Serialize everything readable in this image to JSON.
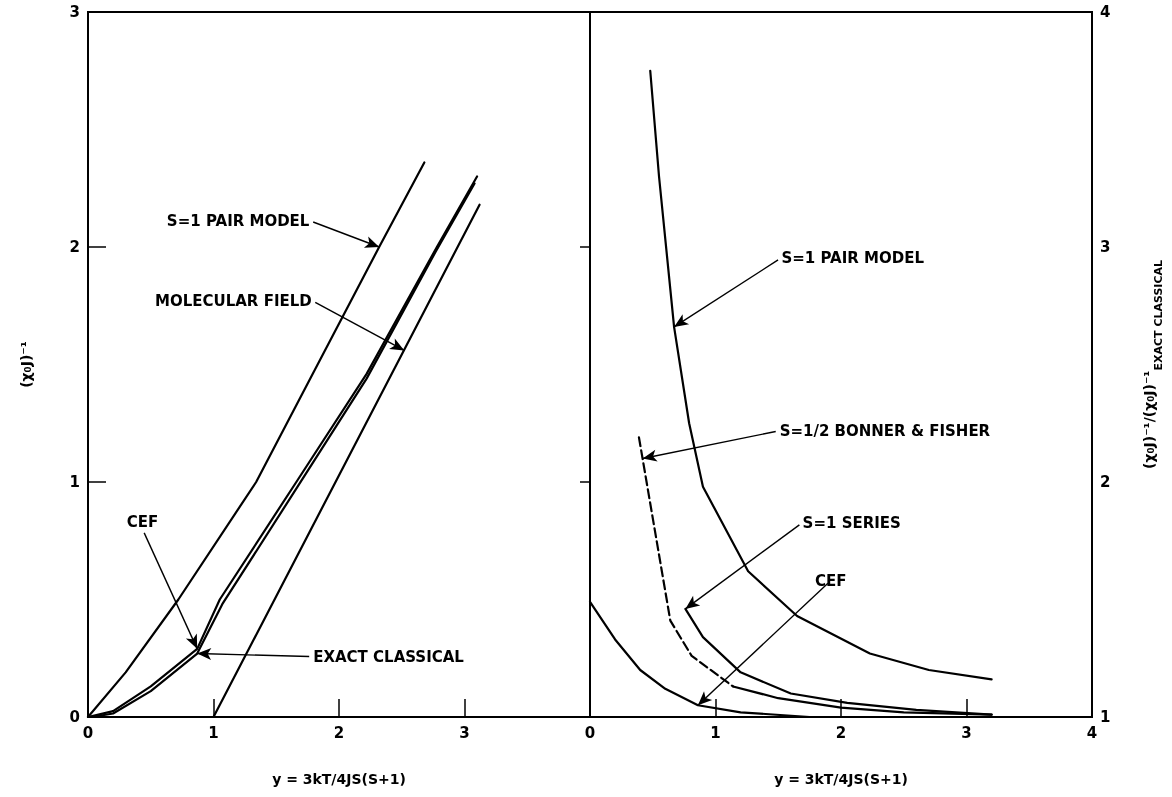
{
  "chart_data": [
    {
      "type": "line",
      "xlabel": "y = 3kT/4JS(S+1)",
      "ylabel": "(χ₀J)⁻¹",
      "xlim": [
        0,
        4
      ],
      "xticks": [
        0,
        1,
        2,
        3
      ],
      "ylim": [
        0,
        3
      ],
      "yticks": [
        0,
        1,
        2,
        3
      ],
      "marker": "none",
      "series": [
        {
          "color": "#000000",
          "x": [
            0,
            0.3,
            0.72,
            1.34,
            1.79,
            2.32,
            2.68
          ],
          "values": [
            0,
            0.19,
            0.5,
            1.0,
            1.46,
            2.0,
            2.36
          ]
        },
        {
          "color": "#000000",
          "x": [
            1,
            3.12
          ],
          "values": [
            0,
            2.18
          ]
        },
        {
          "color": "#000000",
          "x": [
            0,
            0.2,
            0.5,
            0.87,
            1.05,
            1.66,
            2.22,
            2.78,
            3.1
          ],
          "values": [
            0,
            0.025,
            0.13,
            0.29,
            0.5,
            1.0,
            1.46,
            2.0,
            2.3
          ]
        },
        {
          "color": "#000000",
          "x": [
            0.03,
            0.2,
            0.5,
            0.87,
            1.07,
            1.67,
            2.22,
            2.77,
            3.08
          ],
          "values": [
            0,
            0.015,
            0.11,
            0.27,
            0.48,
            0.98,
            1.44,
            1.98,
            2.27
          ]
        }
      ],
      "annotations": [
        {
          "text": "S=1 PAIR MODEL",
          "x": 2.32,
          "y": 2.0
        },
        {
          "text": "MOLECULAR FIELD",
          "x": 2.52,
          "y": 1.56
        },
        {
          "text": "CEF",
          "x": 0.87,
          "y": 0.29
        },
        {
          "text": "EXACT CLASSICAL",
          "x": 0.87,
          "y": 0.27
        }
      ]
    },
    {
      "type": "line",
      "xlabel": "y = 3kT/4JS(S+1)",
      "ylabel": "(χ₀J)⁻¹/(χ₀J)⁻¹$_{EXACT CLASSICAL}$",
      "xlim": [
        0,
        4
      ],
      "xticks": [
        0,
        1,
        2,
        3,
        4
      ],
      "ylim": [
        1,
        4
      ],
      "yticks": [
        1,
        2,
        3,
        4
      ],
      "marker": "none",
      "series": [
        {
          "color": "#000000",
          "x": [
            0.48,
            0.55,
            0.67,
            0.79,
            0.9,
            1.26,
            1.65,
            2.23,
            2.7,
            3.2
          ],
          "values": [
            3.75,
            3.3,
            2.66,
            2.25,
            1.98,
            1.62,
            1.43,
            1.27,
            1.2,
            1.16
          ]
        },
        {
          "color": "#000000",
          "line_style": "dashed",
          "x": [
            0.39,
            0.47,
            0.64,
            0.81,
            1.14
          ],
          "values": [
            2.19,
            1.94,
            1.41,
            1.26,
            1.13
          ]
        },
        {
          "color": "#000000",
          "x": [
            1.14,
            1.5,
            2.0,
            2.5,
            3.2
          ],
          "values": [
            1.13,
            1.08,
            1.04,
            1.02,
            1.01
          ]
        },
        {
          "color": "#000000",
          "x": [
            0.76,
            0.9,
            1.2,
            1.6,
            2.05,
            2.6,
            3.2
          ],
          "values": [
            1.46,
            1.34,
            1.19,
            1.1,
            1.06,
            1.03,
            1.01
          ]
        },
        {
          "color": "#000000",
          "x": [
            0,
            0.2,
            0.4,
            0.6,
            0.86,
            1.2,
            1.75,
            2.5,
            3.2
          ],
          "values": [
            1.49,
            1.33,
            1.2,
            1.12,
            1.05,
            1.02,
            1.0,
            1.0,
            1.0
          ]
        }
      ],
      "annotations": [
        {
          "text": "S=1 PAIR MODEL",
          "x": 0.67,
          "y": 2.66
        },
        {
          "text": "S=1/2 BONNER & FISHER",
          "x": 0.42,
          "y": 2.1
        },
        {
          "text": "S=1 SERIES",
          "x": 0.76,
          "y": 1.46
        },
        {
          "text": "CEF",
          "x": 0.86,
          "y": 1.05
        }
      ]
    }
  ]
}
